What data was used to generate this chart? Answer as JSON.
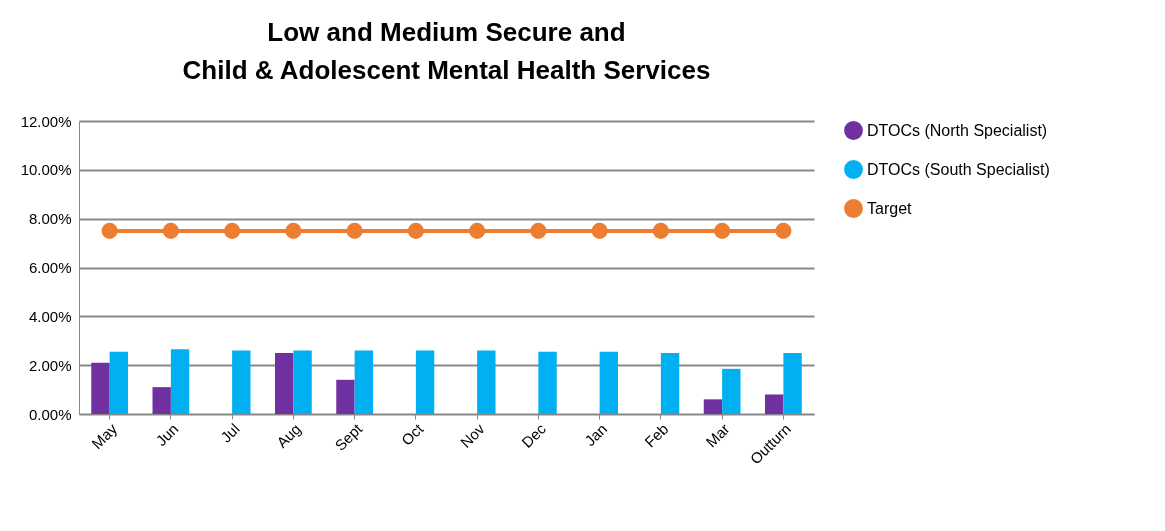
{
  "chart_data": {
    "type": "bar",
    "title": [
      "Low and Medium Secure and",
      "Child & Adolescent Mental Health Services"
    ],
    "categories": [
      "May",
      "Jun",
      "Jul",
      "Aug",
      "Sept",
      "Oct",
      "Nov",
      "Dec",
      "Jan",
      "Feb",
      "Mar",
      "Outturn"
    ],
    "series": [
      {
        "name": "DTOCs (North Specialist)",
        "color": "#7030a0",
        "values": [
          2.1,
          1.1,
          null,
          2.5,
          1.4,
          null,
          null,
          null,
          null,
          null,
          0.6,
          0.8
        ]
      },
      {
        "name": "DTOCs (South Specialist)",
        "color": "#00b0f0",
        "values": [
          2.55,
          2.65,
          2.6,
          2.6,
          2.6,
          2.6,
          2.6,
          2.55,
          2.55,
          2.5,
          1.85,
          2.5
        ]
      },
      {
        "name": "Target",
        "type": "line",
        "color": "#ed7d31",
        "marker": "circle",
        "values": [
          7.5,
          7.5,
          7.5,
          7.5,
          7.5,
          7.5,
          7.5,
          7.5,
          7.5,
          7.5,
          7.5,
          7.5
        ]
      }
    ],
    "ylim": [
      0,
      12
    ],
    "yticks": [
      {
        "value": 0,
        "label": "0.00%"
      },
      {
        "value": 2,
        "label": "2.00%"
      },
      {
        "value": 4,
        "label": "4.00%"
      },
      {
        "value": 6,
        "label": "6.00%"
      },
      {
        "value": 8,
        "label": "8.00%"
      },
      {
        "value": 10,
        "label": "10.00%"
      },
      {
        "value": 12,
        "label": "12.00%"
      }
    ],
    "grid": "y",
    "legend": "right"
  }
}
